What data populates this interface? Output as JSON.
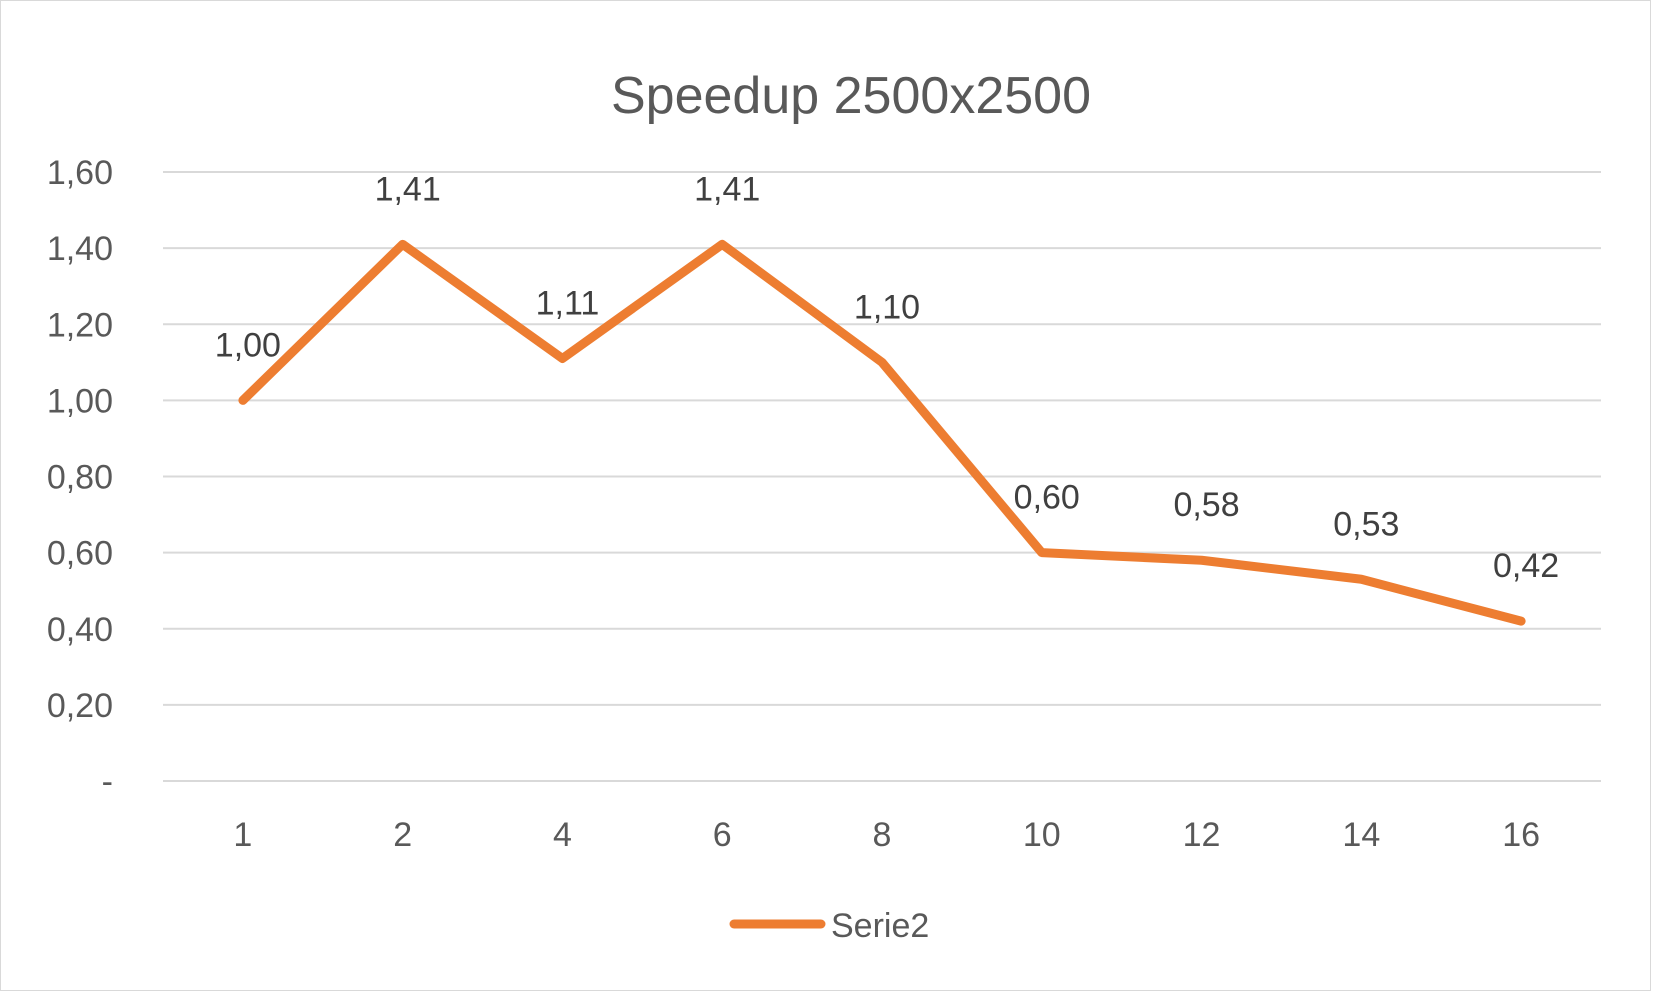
{
  "chart_data": {
    "type": "line",
    "title": "Speedup 2500x2500",
    "categories": [
      "1",
      "2",
      "4",
      "6",
      "8",
      "10",
      "12",
      "14",
      "16"
    ],
    "series": [
      {
        "name": "Serie2",
        "values": [
          1.0,
          1.41,
          1.11,
          1.41,
          1.1,
          0.6,
          0.58,
          0.53,
          0.42
        ],
        "labels": [
          "1,00",
          "1,41",
          "1,11",
          "1,41",
          "1,10",
          "0,60",
          "0,58",
          "0,53",
          "0,42"
        ],
        "color": "#ED7D31"
      }
    ],
    "ylim": [
      0,
      1.6
    ],
    "yticks": [
      {
        "value": 0,
        "label": "-"
      },
      {
        "value": 0.2,
        "label": "0,20"
      },
      {
        "value": 0.4,
        "label": "0,40"
      },
      {
        "value": 0.6,
        "label": "0,60"
      },
      {
        "value": 0.8,
        "label": "0,80"
      },
      {
        "value": 1.0,
        "label": "1,00"
      },
      {
        "value": 1.2,
        "label": "1,20"
      },
      {
        "value": 1.4,
        "label": "1,40"
      },
      {
        "value": 1.6,
        "label": "1,60"
      }
    ],
    "grid": true,
    "legend": "bottom",
    "gridColor": "#d9d9d9",
    "textColor": "#595959"
  }
}
